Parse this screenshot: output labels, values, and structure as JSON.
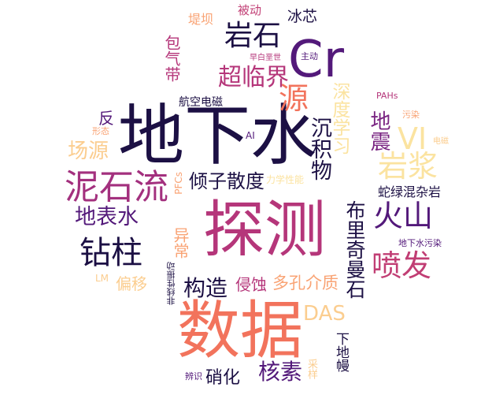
{
  "palette": {
    "dark": "#1c1044",
    "purple": "#53197a",
    "magenta": "#b5367a",
    "coral": "#f2735c",
    "salmon": "#f9a374",
    "peach": "#fbcd8f",
    "cream": "#fbe3a0"
  },
  "words": [
    {
      "id": "w1",
      "text": "探测",
      "color": "#b5367a"
    },
    {
      "id": "w2",
      "text": "地下水",
      "color": "#1c1044"
    },
    {
      "id": "w3",
      "text": "数据",
      "color": "#f2735c"
    },
    {
      "id": "w4",
      "text": "Cr",
      "color": "#53197a"
    },
    {
      "id": "w5",
      "text": "泥石流",
      "color": "#a3307e"
    },
    {
      "id": "w6",
      "text": "火山",
      "color": "#53197a"
    },
    {
      "id": "w7",
      "text": "钻柱",
      "color": "#1c1044"
    },
    {
      "id": "w8",
      "text": "岩浆",
      "color": "#fbe3a0"
    },
    {
      "id": "w9",
      "text": "喷发",
      "color": "#c13e74"
    },
    {
      "id": "w10",
      "text": "岩石",
      "color": "#1c1044"
    },
    {
      "id": "w11",
      "text": "VI",
      "color": "#fbe3a0"
    },
    {
      "id": "w12",
      "text": "DAS",
      "color": "#fbcd8f"
    },
    {
      "id": "w13",
      "text": "源",
      "color": "#f2735c"
    },
    {
      "id": "w14",
      "text": "超临界",
      "color": "#b5367a"
    },
    {
      "id": "w15",
      "text": "地表水",
      "color": "#53197a"
    },
    {
      "id": "w16",
      "text": "倾子散度",
      "color": "#1c1044"
    },
    {
      "id": "w17",
      "text": "构造",
      "color": "#1c1044"
    },
    {
      "id": "w18",
      "text": "场源",
      "color": "#fbcd8f"
    },
    {
      "id": "w19",
      "text": "核素",
      "color": "#53197a"
    },
    {
      "id": "w20",
      "text": "沉积物",
      "color": "#1c1044"
    },
    {
      "id": "w21",
      "text": "布里奇曼石",
      "color": "#1c1044"
    },
    {
      "id": "w22",
      "text": "深度学习",
      "color": "#fbe3a0"
    },
    {
      "id": "w23",
      "text": "地震",
      "color": "#7a2582"
    },
    {
      "id": "w24",
      "text": "多孔介质",
      "color": "#f9a374"
    },
    {
      "id": "w25",
      "text": "侵蚀",
      "color": "#b5367a"
    },
    {
      "id": "w26",
      "text": "硝化",
      "color": "#1c1044"
    },
    {
      "id": "w27",
      "text": "蛇绿混杂岩",
      "color": "#1c1044"
    },
    {
      "id": "w28",
      "text": "偏移",
      "color": "#fbcd8f"
    },
    {
      "id": "w29",
      "text": "包气带",
      "color": "#b5367a"
    },
    {
      "id": "w30",
      "text": "异常",
      "color": "#f9a374"
    },
    {
      "id": "w31",
      "text": "反",
      "color": "#53197a"
    },
    {
      "id": "w32",
      "text": "冰芯",
      "color": "#1c1044"
    },
    {
      "id": "w33",
      "text": "被动",
      "color": "#c13e74"
    },
    {
      "id": "w34",
      "text": "堤坝",
      "color": "#f9a374"
    },
    {
      "id": "w35",
      "text": "航空电磁",
      "color": "#1c1044"
    },
    {
      "id": "w36",
      "text": "下地幔",
      "color": "#1c1044"
    },
    {
      "id": "w37",
      "text": "地下水污染",
      "color": "#53197a"
    },
    {
      "id": "w38",
      "text": "PFCs",
      "color": "#f9a374"
    },
    {
      "id": "w39",
      "text": "力学性能",
      "color": "#fbe3a0"
    },
    {
      "id": "w40",
      "text": "非线性振动",
      "color": "#1c1044"
    },
    {
      "id": "w41",
      "text": "采样",
      "color": "#fbcd8f"
    },
    {
      "id": "w42",
      "text": "辨识",
      "color": "#53197a"
    },
    {
      "id": "w43",
      "text": "LM",
      "color": "#fbcd8f"
    },
    {
      "id": "w44",
      "text": "形态",
      "color": "#f9a374"
    },
    {
      "id": "w45",
      "text": "AI",
      "color": "#53197a"
    },
    {
      "id": "w46",
      "text": "主动",
      "color": "#53197a"
    },
    {
      "id": "w47",
      "text": "早白垩世",
      "color": "#b5367a"
    },
    {
      "id": "w48",
      "text": "PAHs",
      "color": "#b5367a"
    },
    {
      "id": "w49",
      "text": "污染",
      "color": "#f9a374"
    },
    {
      "id": "w50",
      "text": "电磁",
      "color": "#fbcd8f"
    }
  ]
}
